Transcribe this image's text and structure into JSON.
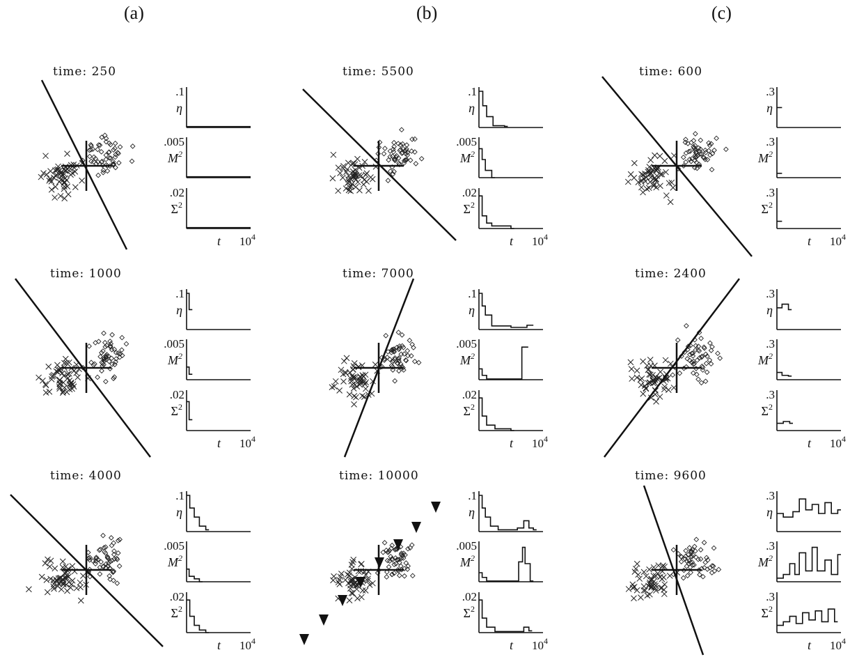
{
  "columns": [
    {
      "label": "(a)"
    },
    {
      "label": "(b)"
    },
    {
      "label": "(c)"
    }
  ],
  "panels": [
    {
      "title": "time: 250",
      "ticks": [
        ".1",
        ".005",
        ".02"
      ],
      "hasTriangles": false,
      "line": [
        [
          60,
          115
        ],
        [
          182,
          358
        ]
      ],
      "seed": 11,
      "series": {
        "eta": [],
        "m2": [],
        "s2": []
      }
    },
    {
      "title": "time: 5500",
      "ticks": [
        ".1",
        ".005",
        ".02"
      ],
      "hasTriangles": false,
      "line": [
        [
          435,
          128
        ],
        [
          655,
          345
        ]
      ],
      "seed": 23,
      "series": {
        "eta": [
          [
            0,
            1.0
          ],
          [
            0.06,
            0.6
          ],
          [
            0.12,
            0.3
          ],
          [
            0.22,
            0.05
          ],
          [
            0.4,
            0.03
          ]
        ],
        "m2": [
          [
            0,
            0.8
          ],
          [
            0.05,
            0.5
          ],
          [
            0.1,
            0.2
          ],
          [
            0.2,
            0.0
          ]
        ],
        "s2": [
          [
            0,
            0.9
          ],
          [
            0.05,
            0.35
          ],
          [
            0.12,
            0.15
          ],
          [
            0.2,
            0.07
          ],
          [
            0.5,
            0.0
          ]
        ]
      }
    },
    {
      "title": "time: 600",
      "ticks": [
        ".3",
        ".3",
        ".3"
      ],
      "hasTriangles": false,
      "line": [
        [
          865,
          110
        ],
        [
          1080,
          368
        ]
      ],
      "seed": 31,
      "series": {
        "eta": [
          [
            0,
            0.55
          ],
          [
            0.03,
            0.55
          ]
        ],
        "m2": [
          [
            0,
            0.12
          ],
          [
            0.03,
            0.12
          ]
        ],
        "s2": [
          [
            0,
            0.2
          ],
          [
            0.03,
            0.2
          ]
        ]
      }
    },
    {
      "title": "time: 1000",
      "ticks": [
        ".1",
        ".005",
        ".02"
      ],
      "hasTriangles": false,
      "line": [
        [
          22,
          400
        ],
        [
          216,
          656
        ]
      ],
      "seed": 45,
      "series": {
        "eta": [
          [
            0,
            1.0
          ],
          [
            0.04,
            0.55
          ]
        ],
        "m2": [
          [
            0,
            0.35
          ],
          [
            0.04,
            0.15
          ]
        ],
        "s2": [
          [
            0,
            0.8
          ],
          [
            0.04,
            0.3
          ]
        ]
      }
    },
    {
      "title": "time: 7000",
      "ticks": [
        ".1",
        ".005",
        ".02"
      ],
      "hasTriangles": false,
      "line": [
        [
          594,
          400
        ],
        [
          495,
          656
        ]
      ],
      "seed": 57,
      "series": {
        "eta": [
          [
            0,
            1.0
          ],
          [
            0.05,
            0.65
          ],
          [
            0.1,
            0.4
          ],
          [
            0.2,
            0.1
          ],
          [
            0.5,
            0.06
          ],
          [
            0.75,
            0.12
          ],
          [
            0.8,
            0.12
          ]
        ],
        "m2": [
          [
            0,
            0.3
          ],
          [
            0.05,
            0.12
          ],
          [
            0.12,
            0.02
          ],
          [
            0.6,
            0.02
          ],
          [
            0.67,
            0.9
          ],
          [
            0.72,
            0.9
          ]
        ],
        "s2": [
          [
            0,
            0.9
          ],
          [
            0.05,
            0.4
          ],
          [
            0.12,
            0.15
          ],
          [
            0.25,
            0.05
          ],
          [
            0.5,
            0.0
          ]
        ]
      }
    },
    {
      "title": "time: 2400",
      "ticks": [
        ".3",
        ".3",
        ".3"
      ],
      "hasTriangles": false,
      "line": [
        [
          868,
          656
        ],
        [
          1062,
          400
        ]
      ],
      "seed": 63,
      "series": {
        "eta": [
          [
            0,
            0.6
          ],
          [
            0.08,
            0.7
          ],
          [
            0.18,
            0.55
          ]
        ],
        "m2": [
          [
            0,
            0.2
          ],
          [
            0.08,
            0.12
          ],
          [
            0.18,
            0.1
          ]
        ],
        "s2": [
          [
            0,
            0.2
          ],
          [
            0.1,
            0.25
          ],
          [
            0.2,
            0.2
          ]
        ]
      }
    },
    {
      "title": "time: 4000",
      "ticks": [
        ".1",
        ".005",
        ".02"
      ],
      "hasTriangles": false,
      "line": [
        [
          15,
          710
        ],
        [
          234,
          928
        ]
      ],
      "seed": 71,
      "series": {
        "eta": [
          [
            0,
            1.0
          ],
          [
            0.05,
            0.65
          ],
          [
            0.12,
            0.4
          ],
          [
            0.2,
            0.15
          ],
          [
            0.3,
            0.05
          ]
        ],
        "m2": [
          [
            0,
            0.35
          ],
          [
            0.04,
            0.15
          ],
          [
            0.12,
            0.08
          ],
          [
            0.2,
            0.0
          ]
        ],
        "s2": [
          [
            0,
            0.9
          ],
          [
            0.05,
            0.45
          ],
          [
            0.12,
            0.2
          ],
          [
            0.2,
            0.07
          ],
          [
            0.3,
            0.0
          ]
        ]
      }
    },
    {
      "title": "time: 10000",
      "ticks": [
        ".1",
        ".005",
        ".02"
      ],
      "hasTriangles": true,
      "line": null,
      "seed": 83,
      "series": {
        "eta": [
          [
            0,
            1.0
          ],
          [
            0.05,
            0.65
          ],
          [
            0.1,
            0.4
          ],
          [
            0.18,
            0.15
          ],
          [
            0.3,
            0.05
          ],
          [
            0.6,
            0.1
          ],
          [
            0.7,
            0.3
          ],
          [
            0.78,
            0.1
          ],
          [
            0.85,
            0.05
          ]
        ],
        "m2": [
          [
            0,
            0.25
          ],
          [
            0.05,
            0.12
          ],
          [
            0.12,
            0.02
          ],
          [
            0.55,
            0.02
          ],
          [
            0.62,
            0.55
          ],
          [
            0.68,
            0.95
          ],
          [
            0.72,
            0.5
          ],
          [
            0.8,
            0.02
          ]
        ],
        "s2": [
          [
            0,
            0.9
          ],
          [
            0.05,
            0.4
          ],
          [
            0.12,
            0.15
          ],
          [
            0.25,
            0.03
          ],
          [
            0.6,
            0.03
          ],
          [
            0.7,
            0.15
          ],
          [
            0.78,
            0.05
          ]
        ]
      }
    },
    {
      "title": "time: 9600",
      "ticks": [
        ".3",
        ".3",
        ".3"
      ],
      "hasTriangles": false,
      "line": [
        [
          925,
          697
        ],
        [
          1010,
          940
        ]
      ],
      "seed": 97,
      "series": {
        "eta": [
          [
            0,
            0.5
          ],
          [
            0.1,
            0.4
          ],
          [
            0.25,
            0.55
          ],
          [
            0.35,
            0.9
          ],
          [
            0.45,
            0.6
          ],
          [
            0.55,
            0.75
          ],
          [
            0.65,
            0.5
          ],
          [
            0.75,
            0.8
          ],
          [
            0.85,
            0.5
          ],
          [
            0.95,
            0.6
          ]
        ],
        "m2": [
          [
            0,
            0.1
          ],
          [
            0.1,
            0.2
          ],
          [
            0.2,
            0.5
          ],
          [
            0.28,
            0.2
          ],
          [
            0.35,
            0.8
          ],
          [
            0.45,
            0.3
          ],
          [
            0.55,
            0.95
          ],
          [
            0.63,
            0.3
          ],
          [
            0.75,
            0.6
          ],
          [
            0.85,
            0.2
          ],
          [
            0.95,
            0.75
          ]
        ],
        "s2": [
          [
            0,
            0.2
          ],
          [
            0.1,
            0.3
          ],
          [
            0.2,
            0.45
          ],
          [
            0.3,
            0.25
          ],
          [
            0.4,
            0.55
          ],
          [
            0.5,
            0.35
          ],
          [
            0.6,
            0.6
          ],
          [
            0.7,
            0.3
          ],
          [
            0.8,
            0.65
          ],
          [
            0.9,
            0.3
          ]
        ]
      }
    }
  ],
  "axis_symbols": {
    "eta": "η",
    "m": "M",
    "sigma": "Σ",
    "t": "t",
    "tmax": "10"
  },
  "exponents": {
    "m": "2",
    "sigma": "2",
    "tmax": "4"
  }
}
